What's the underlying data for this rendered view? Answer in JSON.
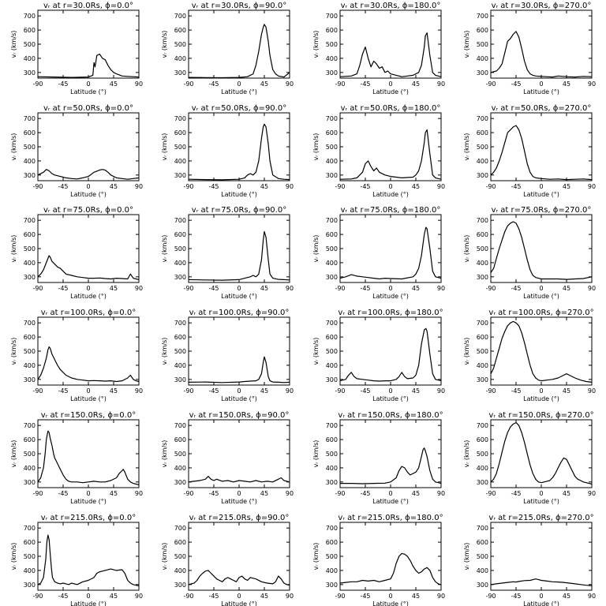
{
  "shared": {
    "xlabel": "Latitude (°)",
    "ylabel": "vᵣ (km/s)",
    "xticks": [
      -90,
      -45,
      0,
      45,
      90
    ],
    "yticks": [
      300,
      400,
      500,
      600,
      700
    ],
    "xlim": [
      -90,
      90
    ],
    "ylim": [
      260,
      740
    ]
  },
  "chart_data": [
    {
      "type": "line",
      "title": "vᵣ at r=30.0Rs, ϕ=0.0°",
      "x": [
        -90,
        -60,
        -30,
        0,
        8,
        10,
        12,
        15,
        20,
        25,
        30,
        35,
        40,
        45,
        50,
        60,
        70,
        80,
        90
      ],
      "y": [
        270,
        268,
        265,
        268,
        280,
        370,
        340,
        420,
        430,
        400,
        390,
        350,
        320,
        300,
        290,
        275,
        272,
        270,
        268
      ]
    },
    {
      "type": "line",
      "title": "vᵣ at r=30.0Rs, ϕ=90.0°",
      "x": [
        -90,
        -60,
        -30,
        0,
        15,
        25,
        30,
        35,
        40,
        43,
        45,
        48,
        52,
        55,
        60,
        65,
        70,
        80,
        90
      ],
      "y": [
        265,
        264,
        263,
        265,
        270,
        290,
        350,
        450,
        570,
        620,
        640,
        620,
        520,
        420,
        320,
        290,
        275,
        268,
        300
      ]
    },
    {
      "type": "line",
      "title": "vᵣ at r=30.0Rs, ϕ=180.0°",
      "x": [
        -90,
        -70,
        -60,
        -55,
        -50,
        -45,
        -40,
        -35,
        -30,
        -25,
        -20,
        -15,
        -10,
        -5,
        0,
        10,
        20,
        30,
        40,
        50,
        55,
        60,
        62,
        65,
        70,
        75,
        80,
        90
      ],
      "y": [
        270,
        275,
        290,
        350,
        430,
        480,
        400,
        340,
        380,
        360,
        330,
        340,
        300,
        310,
        290,
        280,
        270,
        275,
        280,
        300,
        350,
        480,
        560,
        580,
        420,
        300,
        280,
        270
      ]
    },
    {
      "type": "line",
      "title": "vᵣ at r=30.0Rs, ϕ=270.0°",
      "x": [
        -90,
        -80,
        -75,
        -70,
        -65,
        -60,
        -55,
        -50,
        -45,
        -40,
        -35,
        -30,
        -25,
        -20,
        -15,
        -10,
        0,
        10,
        20,
        30,
        45,
        60,
        75,
        90
      ],
      "y": [
        300,
        310,
        330,
        360,
        440,
        520,
        540,
        570,
        590,
        550,
        470,
        380,
        320,
        290,
        280,
        275,
        272,
        270,
        268,
        275,
        270,
        268,
        272,
        270
      ]
    },
    {
      "type": "line",
      "title": "vᵣ at r=50.0Rs, ϕ=0.0°",
      "x": [
        -90,
        -80,
        -75,
        -70,
        -65,
        -60,
        -50,
        -45,
        -40,
        -30,
        -20,
        -10,
        0,
        10,
        20,
        25,
        30,
        35,
        40,
        50,
        60,
        70,
        80,
        90
      ],
      "y": [
        300,
        320,
        340,
        330,
        310,
        300,
        290,
        285,
        280,
        275,
        272,
        280,
        290,
        320,
        335,
        340,
        335,
        320,
        300,
        280,
        275,
        270,
        275,
        280
      ]
    },
    {
      "type": "line",
      "title": "vᵣ at r=50.0Rs, ϕ=90.0°",
      "x": [
        -90,
        -60,
        -30,
        0,
        10,
        15,
        20,
        25,
        30,
        35,
        40,
        43,
        45,
        48,
        52,
        55,
        60,
        70,
        80,
        90
      ],
      "y": [
        270,
        268,
        266,
        270,
        280,
        300,
        310,
        300,
        320,
        400,
        560,
        640,
        660,
        640,
        520,
        400,
        300,
        275,
        270,
        268
      ]
    },
    {
      "type": "line",
      "title": "vᵣ at r=50.0Rs, ϕ=180.0°",
      "x": [
        -90,
        -70,
        -60,
        -50,
        -45,
        -40,
        -35,
        -30,
        -25,
        -20,
        -10,
        0,
        20,
        40,
        45,
        50,
        55,
        60,
        62,
        65,
        70,
        75,
        80,
        90
      ],
      "y": [
        270,
        272,
        280,
        320,
        380,
        400,
        360,
        330,
        350,
        320,
        300,
        290,
        280,
        285,
        300,
        330,
        400,
        530,
        600,
        620,
        450,
        300,
        280,
        270
      ]
    },
    {
      "type": "line",
      "title": "vᵣ at r=50.0Rs, ϕ=270.0°",
      "x": [
        -90,
        -85,
        -80,
        -75,
        -70,
        -65,
        -60,
        -55,
        -50,
        -45,
        -40,
        -35,
        -30,
        -25,
        -20,
        -15,
        -10,
        0,
        15,
        30,
        45,
        60,
        75,
        90
      ],
      "y": [
        300,
        320,
        350,
        400,
        460,
        530,
        600,
        620,
        640,
        650,
        620,
        560,
        470,
        380,
        320,
        290,
        280,
        275,
        270,
        272,
        268,
        270,
        272,
        268
      ]
    },
    {
      "type": "line",
      "title": "vᵣ at r=75.0Rs, ϕ=0.0°",
      "x": [
        -90,
        -85,
        -80,
        -75,
        -72,
        -70,
        -68,
        -65,
        -60,
        -55,
        -50,
        -45,
        -40,
        -30,
        -20,
        -10,
        0,
        10,
        20,
        30,
        40,
        50,
        60,
        70,
        75,
        80,
        85,
        90
      ],
      "y": [
        300,
        320,
        350,
        400,
        430,
        450,
        440,
        410,
        390,
        370,
        360,
        340,
        320,
        310,
        300,
        295,
        290,
        290,
        292,
        288,
        285,
        290,
        288,
        285,
        320,
        290,
        285,
        280
      ]
    },
    {
      "type": "line",
      "title": "vᵣ at r=75.0Rs, ϕ=90.0°",
      "x": [
        -90,
        -60,
        -30,
        0,
        10,
        20,
        25,
        30,
        35,
        40,
        43,
        45,
        48,
        52,
        55,
        60,
        70,
        80,
        90
      ],
      "y": [
        280,
        278,
        276,
        280,
        290,
        300,
        310,
        300,
        320,
        420,
        560,
        620,
        580,
        420,
        320,
        290,
        282,
        280,
        278
      ]
    },
    {
      "type": "line",
      "title": "vᵣ at r=75.0Rs, ϕ=180.0°",
      "x": [
        -90,
        -80,
        -70,
        -60,
        -50,
        -40,
        -30,
        -20,
        -10,
        0,
        20,
        40,
        45,
        50,
        55,
        60,
        63,
        65,
        70,
        75,
        80,
        90
      ],
      "y": [
        290,
        300,
        315,
        305,
        300,
        295,
        290,
        285,
        290,
        288,
        285,
        300,
        320,
        360,
        450,
        600,
        650,
        640,
        500,
        340,
        300,
        290
      ]
    },
    {
      "type": "line",
      "title": "vᵣ at r=75.0Rs, ϕ=270.0°",
      "x": [
        -90,
        -85,
        -80,
        -75,
        -70,
        -65,
        -60,
        -55,
        -50,
        -45,
        -40,
        -35,
        -30,
        -25,
        -20,
        -15,
        -10,
        -5,
        0,
        15,
        30,
        45,
        60,
        75,
        90
      ],
      "y": [
        330,
        360,
        430,
        500,
        560,
        620,
        660,
        680,
        690,
        680,
        640,
        580,
        500,
        420,
        350,
        310,
        295,
        290,
        285,
        285,
        285,
        282,
        285,
        288,
        300
      ]
    },
    {
      "type": "line",
      "title": "vᵣ at r=100.0Rs, ϕ=0.0°",
      "x": [
        -90,
        -85,
        -80,
        -75,
        -72,
        -70,
        -68,
        -65,
        -60,
        -55,
        -50,
        -45,
        -40,
        -30,
        -20,
        -10,
        0,
        10,
        20,
        30,
        40,
        50,
        60,
        70,
        75,
        80,
        85,
        90
      ],
      "y": [
        300,
        330,
        380,
        450,
        510,
        530,
        520,
        480,
        440,
        400,
        370,
        350,
        330,
        310,
        300,
        295,
        290,
        292,
        290,
        288,
        290,
        285,
        290,
        310,
        330,
        300,
        290,
        285
      ]
    },
    {
      "type": "line",
      "title": "vᵣ at r=100.0Rs, ϕ=90.0°",
      "x": [
        -90,
        -60,
        -30,
        0,
        10,
        20,
        30,
        35,
        40,
        43,
        45,
        48,
        52,
        55,
        60,
        70,
        80,
        90
      ],
      "y": [
        280,
        282,
        278,
        282,
        285,
        288,
        290,
        300,
        340,
        420,
        460,
        420,
        320,
        290,
        282,
        280,
        278,
        280
      ]
    },
    {
      "type": "line",
      "title": "vᵣ at r=100.0Rs, ϕ=180.0°",
      "x": [
        -90,
        -80,
        -75,
        -70,
        -65,
        -60,
        -50,
        -40,
        -30,
        -20,
        -10,
        0,
        10,
        15,
        20,
        25,
        30,
        40,
        45,
        50,
        55,
        60,
        63,
        65,
        70,
        75,
        80,
        90
      ],
      "y": [
        290,
        300,
        330,
        350,
        320,
        305,
        300,
        295,
        290,
        288,
        290,
        290,
        300,
        320,
        350,
        320,
        305,
        310,
        330,
        400,
        550,
        650,
        660,
        640,
        480,
        340,
        300,
        290
      ]
    },
    {
      "type": "line",
      "title": "vᵣ at r=100.0Rs, ϕ=270.0°",
      "x": [
        -90,
        -85,
        -80,
        -75,
        -70,
        -65,
        -60,
        -55,
        -50,
        -45,
        -40,
        -35,
        -30,
        -25,
        -20,
        -15,
        -10,
        -5,
        0,
        10,
        20,
        30,
        40,
        45,
        50,
        60,
        70,
        80,
        90
      ],
      "y": [
        340,
        380,
        450,
        520,
        590,
        640,
        680,
        700,
        710,
        700,
        680,
        630,
        560,
        480,
        400,
        340,
        310,
        295,
        290,
        295,
        300,
        310,
        330,
        340,
        330,
        310,
        295,
        285,
        280
      ]
    },
    {
      "type": "line",
      "title": "vᵣ at r=150.0Rs, ϕ=0.0°",
      "x": [
        -90,
        -85,
        -80,
        -77,
        -75,
        -72,
        -70,
        -68,
        -65,
        -62,
        -60,
        -55,
        -50,
        -45,
        -40,
        -35,
        -30,
        -20,
        -10,
        0,
        10,
        20,
        30,
        40,
        50,
        55,
        60,
        62,
        65,
        70,
        75,
        80,
        85,
        90
      ],
      "y": [
        300,
        330,
        400,
        500,
        600,
        660,
        650,
        610,
        560,
        500,
        470,
        430,
        390,
        350,
        320,
        305,
        300,
        300,
        295,
        300,
        305,
        300,
        300,
        310,
        330,
        360,
        380,
        390,
        370,
        320,
        300,
        290,
        285,
        280
      ]
    },
    {
      "type": "line",
      "title": "vᵣ at r=150.0Rs, ϕ=90.0°",
      "x": [
        -90,
        -80,
        -70,
        -60,
        -55,
        -50,
        -45,
        -40,
        -30,
        -20,
        -10,
        0,
        10,
        20,
        30,
        40,
        50,
        60,
        70,
        75,
        80,
        90
      ],
      "y": [
        300,
        305,
        310,
        320,
        340,
        320,
        310,
        320,
        305,
        310,
        300,
        310,
        305,
        300,
        310,
        300,
        305,
        300,
        320,
        330,
        310,
        300
      ]
    },
    {
      "type": "line",
      "title": "vᵣ at r=150.0Rs, ϕ=180.0°",
      "x": [
        -90,
        -70,
        -50,
        -30,
        -10,
        0,
        10,
        15,
        20,
        25,
        30,
        35,
        40,
        45,
        50,
        55,
        58,
        60,
        62,
        65,
        70,
        75,
        80,
        90
      ],
      "y": [
        290,
        290,
        288,
        290,
        292,
        300,
        330,
        380,
        410,
        400,
        370,
        350,
        360,
        370,
        400,
        480,
        530,
        540,
        520,
        480,
        380,
        320,
        300,
        290
      ]
    },
    {
      "type": "line",
      "title": "vᵣ at r=150.0Rs, ϕ=270.0°",
      "x": [
        -90,
        -85,
        -80,
        -75,
        -70,
        -65,
        -60,
        -55,
        -50,
        -45,
        -40,
        -35,
        -30,
        -25,
        -20,
        -15,
        -10,
        -5,
        0,
        5,
        10,
        15,
        20,
        25,
        30,
        35,
        40,
        45,
        50,
        55,
        60,
        65,
        70,
        75,
        80,
        85,
        90
      ],
      "y": [
        300,
        320,
        360,
        430,
        510,
        590,
        650,
        690,
        710,
        720,
        700,
        650,
        580,
        500,
        420,
        360,
        320,
        300,
        295,
        300,
        305,
        310,
        330,
        360,
        400,
        440,
        470,
        460,
        420,
        380,
        340,
        320,
        310,
        300,
        295,
        290,
        285
      ]
    },
    {
      "type": "line",
      "title": "vᵣ at r=215.0Rs, ϕ=0.0°",
      "x": [
        -90,
        -85,
        -80,
        -76,
        -74,
        -72,
        -70,
        -68,
        -66,
        -64,
        -60,
        -55,
        -50,
        -45,
        -40,
        -35,
        -30,
        -20,
        -10,
        0,
        10,
        15,
        20,
        30,
        40,
        50,
        60,
        65,
        70,
        75,
        80,
        85,
        90
      ],
      "y": [
        300,
        310,
        350,
        480,
        600,
        650,
        620,
        520,
        420,
        350,
        320,
        310,
        305,
        310,
        305,
        300,
        310,
        300,
        320,
        330,
        350,
        380,
        390,
        400,
        410,
        400,
        405,
        380,
        330,
        310,
        300,
        295,
        290
      ]
    },
    {
      "type": "line",
      "title": "vᵣ at r=215.0Rs, ϕ=90.0°",
      "x": [
        -90,
        -80,
        -75,
        -70,
        -65,
        -60,
        -55,
        -50,
        -45,
        -40,
        -35,
        -30,
        -25,
        -20,
        -15,
        -10,
        -5,
        0,
        5,
        10,
        15,
        20,
        30,
        40,
        50,
        60,
        65,
        70,
        75,
        80,
        85,
        90
      ],
      "y": [
        300,
        310,
        330,
        360,
        380,
        395,
        400,
        380,
        360,
        340,
        330,
        320,
        340,
        350,
        340,
        330,
        320,
        350,
        360,
        340,
        330,
        350,
        340,
        320,
        310,
        305,
        320,
        360,
        340,
        310,
        300,
        295
      ]
    },
    {
      "type": "line",
      "title": "vᵣ at r=215.0Rs, ϕ=180.0°",
      "x": [
        -90,
        -80,
        -70,
        -60,
        -50,
        -40,
        -30,
        -20,
        -10,
        0,
        5,
        10,
        15,
        20,
        25,
        30,
        35,
        40,
        45,
        50,
        55,
        60,
        65,
        70,
        75,
        80,
        85,
        90
      ],
      "y": [
        310,
        315,
        320,
        320,
        330,
        325,
        330,
        320,
        330,
        340,
        380,
        450,
        500,
        520,
        515,
        500,
        470,
        430,
        400,
        380,
        390,
        410,
        420,
        400,
        350,
        320,
        305,
        300
      ]
    },
    {
      "type": "line",
      "title": "vᵣ at r=215.0Rs, ϕ=270.0°",
      "x": [
        -90,
        -80,
        -70,
        -60,
        -50,
        -45,
        -40,
        -30,
        -20,
        -10,
        -5,
        0,
        10,
        20,
        30,
        40,
        50,
        60,
        70,
        80,
        90
      ],
      "y": [
        300,
        305,
        310,
        315,
        320,
        318,
        322,
        328,
        330,
        340,
        335,
        330,
        325,
        320,
        318,
        315,
        310,
        305,
        300,
        295,
        292
      ]
    }
  ]
}
